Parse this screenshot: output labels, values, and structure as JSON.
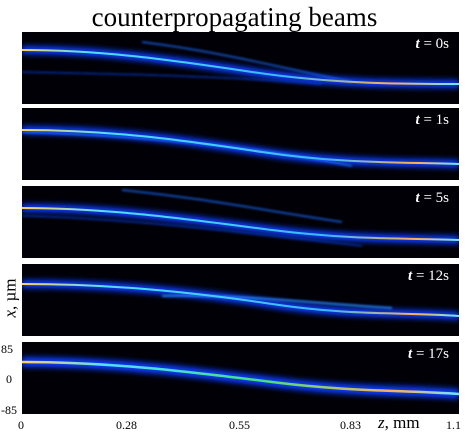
{
  "title": "counterpropagating beams",
  "panels": [
    {
      "t_var": "t",
      "t_value": "= 0s"
    },
    {
      "t_var": "t",
      "t_value": "= 1s"
    },
    {
      "t_var": "t",
      "t_value": "= 5s"
    },
    {
      "t_var": "t",
      "t_value": "= 12s"
    },
    {
      "t_var": "t",
      "t_value": "= 17s"
    }
  ],
  "axes": {
    "x_label_var": "z",
    "x_label_unit": ", mm",
    "x_ticks": [
      "0",
      "0.28",
      "0.55",
      "0.83",
      "1.1"
    ],
    "y_label_var": "x",
    "y_label_unit": ", µm",
    "y_ticks": [
      "85",
      "0",
      "-85"
    ]
  },
  "colors": {
    "background": "#000006",
    "glow": "#0a3cff",
    "core": "#49d8ff",
    "peak": "#f0a040"
  }
}
